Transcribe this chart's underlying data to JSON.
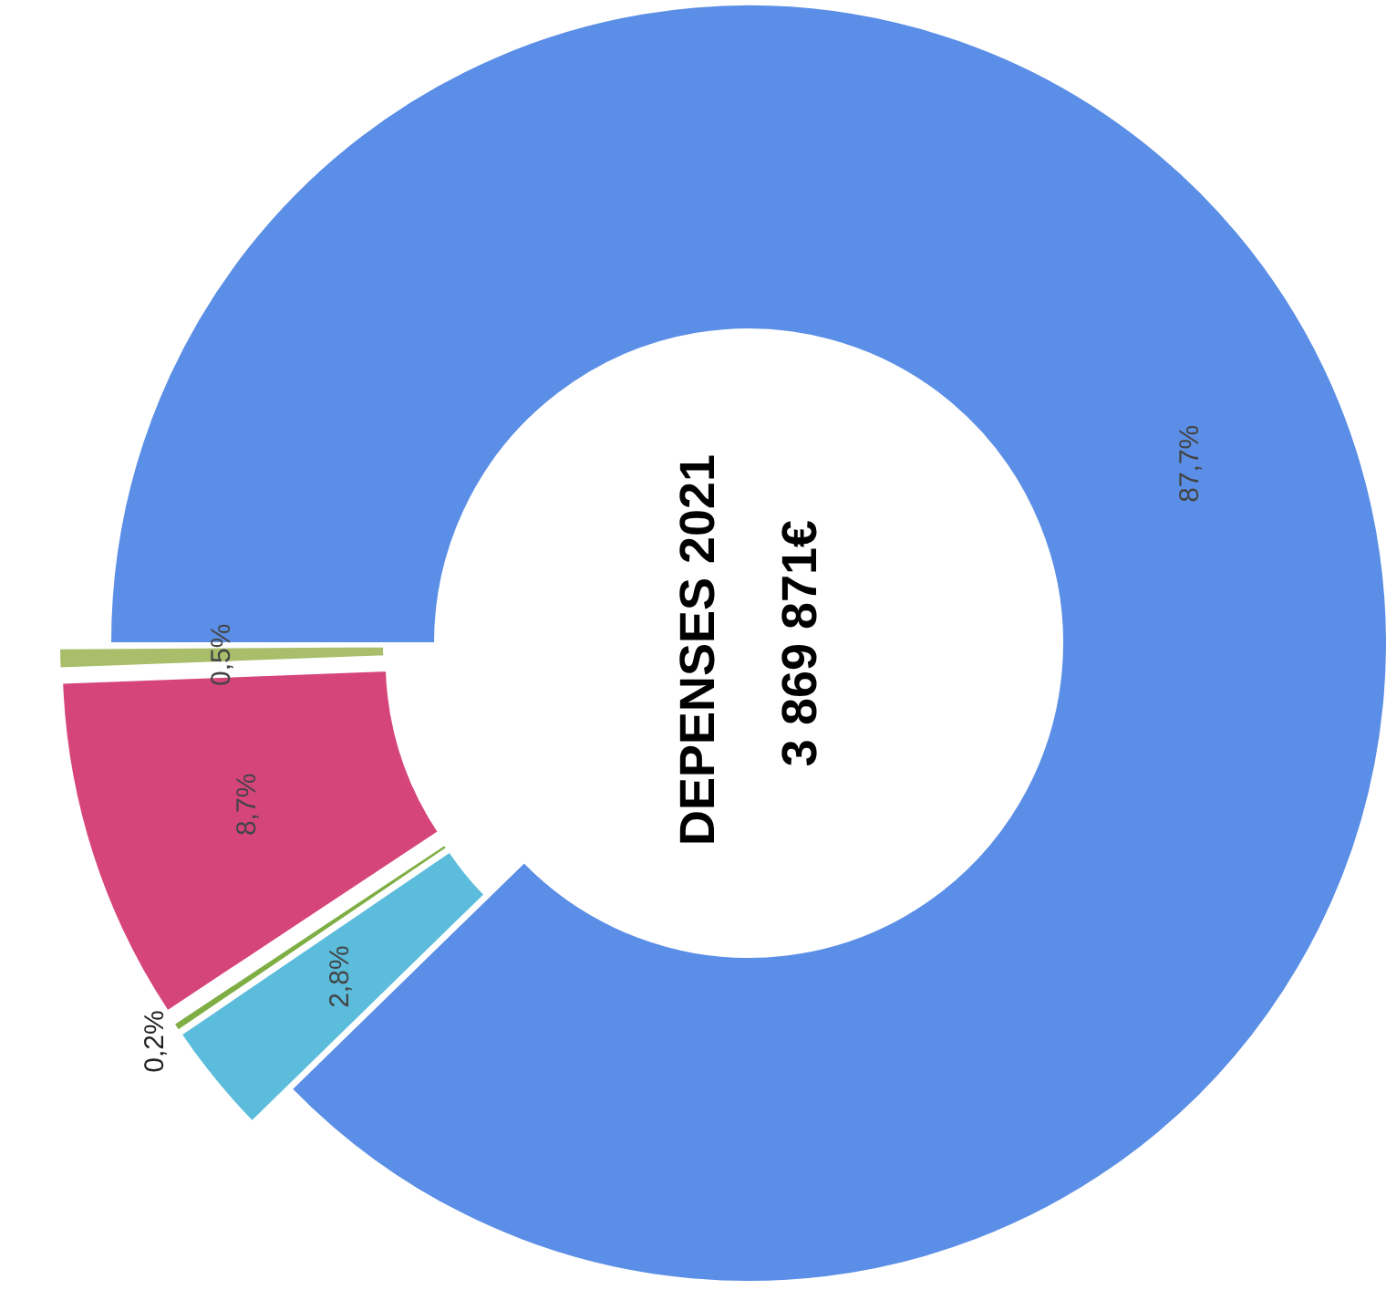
{
  "chart_data": {
    "type": "donut",
    "title": "DEPENSES  2021",
    "subtitle": "3 869 871€",
    "categories": [
      null,
      null,
      null,
      null,
      null
    ],
    "values": [
      87.7,
      2.8,
      0.2,
      8.7,
      0.5
    ],
    "colors": [
      "#5b8ee6",
      "#5bbcdc",
      "#7fae45",
      "#d6457a",
      "#a8be6a"
    ],
    "value_labels": [
      "87,7%",
      "2,8%",
      "0,2%",
      "8,7%",
      "0,5%"
    ]
  }
}
